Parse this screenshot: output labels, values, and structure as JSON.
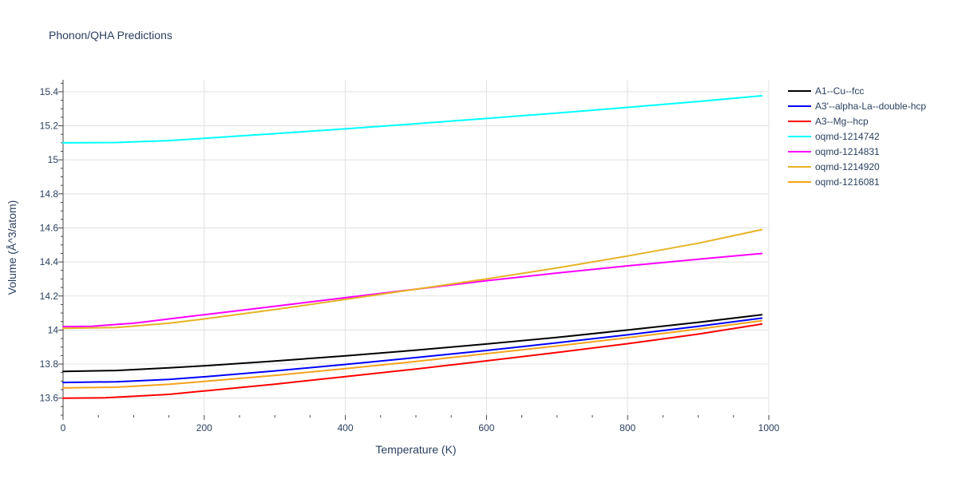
{
  "chart_data": {
    "type": "line",
    "title": "Phonon/QHA Predictions",
    "xlabel": "Temperature (K)",
    "ylabel": "Volume (Å^3/atom)",
    "xlim": [
      0,
      1000
    ],
    "ylim": [
      13.5,
      15.47
    ],
    "x_ticks": [
      0,
      200,
      400,
      600,
      800,
      1000
    ],
    "x_tick_labels": [
      "0",
      "200",
      "400",
      "600",
      "800",
      "1000"
    ],
    "y_ticks": [
      13.6,
      13.8,
      14,
      14.2,
      14.4,
      14.6,
      14.8,
      15,
      15.2,
      15.4
    ],
    "y_tick_labels": [
      "13.6",
      "13.8",
      "14",
      "14.2",
      "14.4",
      "14.6",
      "14.8",
      "15",
      "15.2",
      "15.4"
    ],
    "grid": true,
    "legend_position": "top-right outside",
    "series": [
      {
        "name": "A1--Cu--fcc",
        "color": "#000000",
        "x": [
          0,
          75,
          150,
          200,
          300,
          400,
          500,
          600,
          700,
          800,
          900,
          990
        ],
        "y": [
          13.757,
          13.762,
          13.778,
          13.79,
          13.818,
          13.848,
          13.882,
          13.918,
          13.957,
          14.0,
          14.045,
          14.09
        ]
      },
      {
        "name": "A3'--alpha-La--double-hcp",
        "color": "#0000ff",
        "x": [
          0,
          75,
          150,
          200,
          300,
          400,
          500,
          600,
          700,
          800,
          900,
          990
        ],
        "y": [
          13.692,
          13.696,
          13.71,
          13.725,
          13.76,
          13.798,
          13.838,
          13.88,
          13.925,
          13.972,
          14.022,
          14.07
        ]
      },
      {
        "name": "A3--Mg--hcp",
        "color": "#ff0000",
        "x": [
          0,
          60,
          150,
          200,
          300,
          400,
          500,
          600,
          700,
          800,
          900,
          990
        ],
        "y": [
          13.6,
          13.602,
          13.622,
          13.642,
          13.682,
          13.726,
          13.771,
          13.819,
          13.868,
          13.92,
          13.976,
          14.035
        ]
      },
      {
        "name": "oqmd-1214742",
        "color": "#00ffff",
        "x": [
          0,
          75,
          150,
          200,
          300,
          400,
          500,
          600,
          700,
          800,
          900,
          990
        ],
        "y": [
          15.1,
          15.102,
          15.113,
          15.126,
          15.154,
          15.182,
          15.212,
          15.243,
          15.275,
          15.308,
          15.343,
          15.376
        ]
      },
      {
        "name": "oqmd-1214831",
        "color": "#ff00ff",
        "x": [
          0,
          40,
          100,
          200,
          300,
          400,
          500,
          600,
          700,
          800,
          900,
          990
        ],
        "y": [
          14.02,
          14.022,
          14.04,
          14.09,
          14.14,
          14.19,
          14.24,
          14.29,
          14.335,
          14.377,
          14.416,
          14.45
        ]
      },
      {
        "name": "oqmd-1214920",
        "color": "#e6b325",
        "x": [
          0,
          75,
          150,
          200,
          300,
          400,
          500,
          600,
          700,
          800,
          900,
          990
        ],
        "y": [
          14.01,
          14.015,
          14.04,
          14.065,
          14.12,
          14.18,
          14.24,
          14.3,
          14.365,
          14.435,
          14.51,
          14.59
        ]
      },
      {
        "name": "oqmd-1216081",
        "color": "#f5a21b",
        "x": [
          0,
          75,
          150,
          200,
          300,
          400,
          500,
          600,
          700,
          800,
          900,
          990
        ],
        "y": [
          13.66,
          13.664,
          13.681,
          13.698,
          13.733,
          13.773,
          13.815,
          13.861,
          13.906,
          13.955,
          14.005,
          14.055
        ]
      }
    ]
  }
}
